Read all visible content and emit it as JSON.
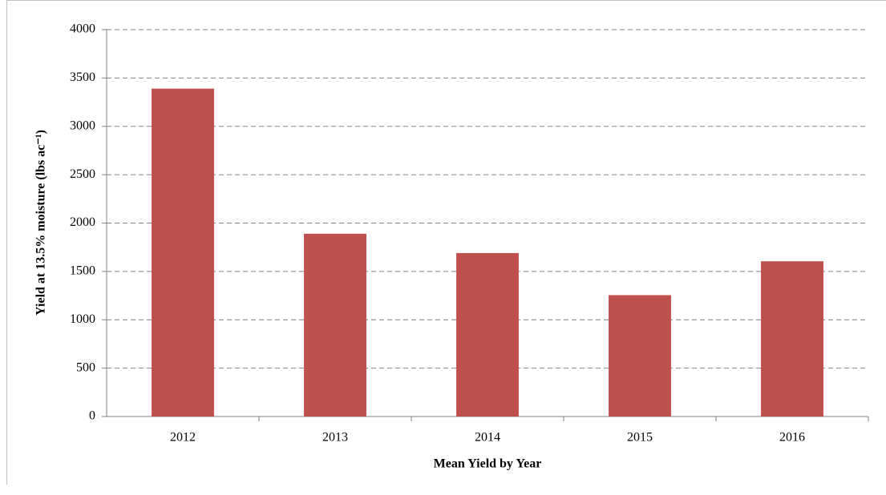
{
  "chart_data": {
    "type": "bar",
    "x_label": "Mean Yield by Year",
    "y_label": "Yield at 13.5% moisture (lbs ac⁻¹)",
    "categories": [
      "2012",
      "2013",
      "2014",
      "2015",
      "2016"
    ],
    "values": [
      3390,
      1890,
      1690,
      1255,
      1605
    ],
    "color": "#c0504d",
    "ylim": [
      0,
      4000
    ],
    "yticks": [
      0,
      500,
      1000,
      1500,
      2000,
      2500,
      3000,
      3500,
      4000
    ],
    "grid": true
  }
}
